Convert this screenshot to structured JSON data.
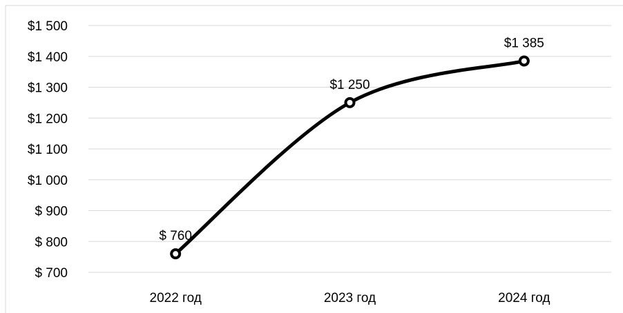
{
  "chart_data": {
    "type": "line",
    "title": "",
    "xlabel": "",
    "ylabel": "",
    "categories": [
      "2022 год",
      "2023 год",
      "2024 год"
    ],
    "series": [
      {
        "values": [
          760,
          1250,
          1385
        ],
        "data_labels": [
          "$ 760",
          "$1 250",
          "$1 385"
        ]
      }
    ],
    "ylim": [
      700,
      1500
    ],
    "ytick_values": [
      700,
      800,
      900,
      1000,
      1100,
      1200,
      1300,
      1400,
      1500
    ],
    "ytick_labels": [
      "$ 700",
      "$ 800",
      "$ 900",
      "$1 000",
      "$1 100",
      "$1 200",
      "$1 300",
      "$1 400",
      "$1 500"
    ],
    "grid": true,
    "legend": "none",
    "smooth": true,
    "colors": {
      "line": "#000000",
      "marker_fill": "#ffffff",
      "grid": "#d9d9d9",
      "frame": "#d9d9d9"
    }
  }
}
